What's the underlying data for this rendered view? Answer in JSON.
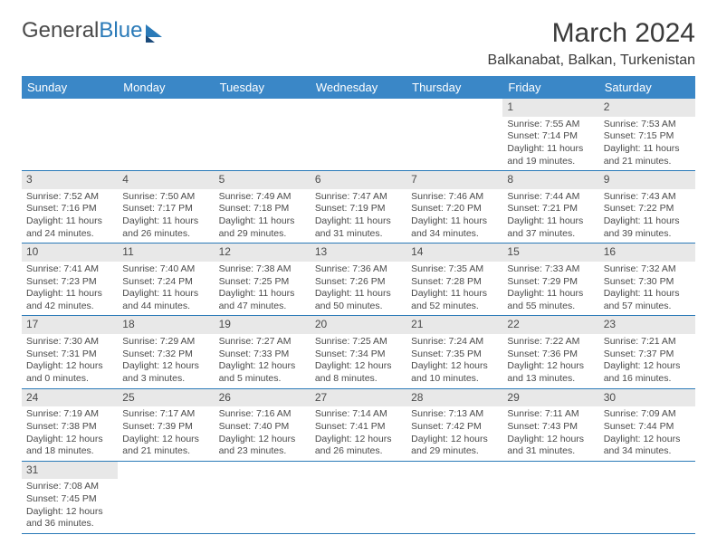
{
  "brand": {
    "part1": "General",
    "part2": "Blue"
  },
  "title": "March 2024",
  "location": "Balkanabat, Balkan, Turkenistan",
  "colors": {
    "header_bg": "#3a87c7",
    "header_text": "#ffffff",
    "daynum_bg": "#e8e8e8",
    "text": "#4a4a4a",
    "rule": "#2a7ab8",
    "page_bg": "#ffffff"
  },
  "typography": {
    "title_size": 30,
    "location_size": 16,
    "weekday_size": 13,
    "cell_size": 10.5
  },
  "weekdays": [
    "Sunday",
    "Monday",
    "Tuesday",
    "Wednesday",
    "Thursday",
    "Friday",
    "Saturday"
  ],
  "first_weekday_index": 5,
  "days": [
    {
      "n": 1,
      "sunrise": "7:55 AM",
      "sunset": "7:14 PM",
      "day_h": 11,
      "day_m": 19
    },
    {
      "n": 2,
      "sunrise": "7:53 AM",
      "sunset": "7:15 PM",
      "day_h": 11,
      "day_m": 21
    },
    {
      "n": 3,
      "sunrise": "7:52 AM",
      "sunset": "7:16 PM",
      "day_h": 11,
      "day_m": 24
    },
    {
      "n": 4,
      "sunrise": "7:50 AM",
      "sunset": "7:17 PM",
      "day_h": 11,
      "day_m": 26
    },
    {
      "n": 5,
      "sunrise": "7:49 AM",
      "sunset": "7:18 PM",
      "day_h": 11,
      "day_m": 29
    },
    {
      "n": 6,
      "sunrise": "7:47 AM",
      "sunset": "7:19 PM",
      "day_h": 11,
      "day_m": 31
    },
    {
      "n": 7,
      "sunrise": "7:46 AM",
      "sunset": "7:20 PM",
      "day_h": 11,
      "day_m": 34
    },
    {
      "n": 8,
      "sunrise": "7:44 AM",
      "sunset": "7:21 PM",
      "day_h": 11,
      "day_m": 37
    },
    {
      "n": 9,
      "sunrise": "7:43 AM",
      "sunset": "7:22 PM",
      "day_h": 11,
      "day_m": 39
    },
    {
      "n": 10,
      "sunrise": "7:41 AM",
      "sunset": "7:23 PM",
      "day_h": 11,
      "day_m": 42
    },
    {
      "n": 11,
      "sunrise": "7:40 AM",
      "sunset": "7:24 PM",
      "day_h": 11,
      "day_m": 44
    },
    {
      "n": 12,
      "sunrise": "7:38 AM",
      "sunset": "7:25 PM",
      "day_h": 11,
      "day_m": 47
    },
    {
      "n": 13,
      "sunrise": "7:36 AM",
      "sunset": "7:26 PM",
      "day_h": 11,
      "day_m": 50
    },
    {
      "n": 14,
      "sunrise": "7:35 AM",
      "sunset": "7:28 PM",
      "day_h": 11,
      "day_m": 52
    },
    {
      "n": 15,
      "sunrise": "7:33 AM",
      "sunset": "7:29 PM",
      "day_h": 11,
      "day_m": 55
    },
    {
      "n": 16,
      "sunrise": "7:32 AM",
      "sunset": "7:30 PM",
      "day_h": 11,
      "day_m": 57
    },
    {
      "n": 17,
      "sunrise": "7:30 AM",
      "sunset": "7:31 PM",
      "day_h": 12,
      "day_m": 0
    },
    {
      "n": 18,
      "sunrise": "7:29 AM",
      "sunset": "7:32 PM",
      "day_h": 12,
      "day_m": 3
    },
    {
      "n": 19,
      "sunrise": "7:27 AM",
      "sunset": "7:33 PM",
      "day_h": 12,
      "day_m": 5
    },
    {
      "n": 20,
      "sunrise": "7:25 AM",
      "sunset": "7:34 PM",
      "day_h": 12,
      "day_m": 8
    },
    {
      "n": 21,
      "sunrise": "7:24 AM",
      "sunset": "7:35 PM",
      "day_h": 12,
      "day_m": 10
    },
    {
      "n": 22,
      "sunrise": "7:22 AM",
      "sunset": "7:36 PM",
      "day_h": 12,
      "day_m": 13
    },
    {
      "n": 23,
      "sunrise": "7:21 AM",
      "sunset": "7:37 PM",
      "day_h": 12,
      "day_m": 16
    },
    {
      "n": 24,
      "sunrise": "7:19 AM",
      "sunset": "7:38 PM",
      "day_h": 12,
      "day_m": 18
    },
    {
      "n": 25,
      "sunrise": "7:17 AM",
      "sunset": "7:39 PM",
      "day_h": 12,
      "day_m": 21
    },
    {
      "n": 26,
      "sunrise": "7:16 AM",
      "sunset": "7:40 PM",
      "day_h": 12,
      "day_m": 23
    },
    {
      "n": 27,
      "sunrise": "7:14 AM",
      "sunset": "7:41 PM",
      "day_h": 12,
      "day_m": 26
    },
    {
      "n": 28,
      "sunrise": "7:13 AM",
      "sunset": "7:42 PM",
      "day_h": 12,
      "day_m": 29
    },
    {
      "n": 29,
      "sunrise": "7:11 AM",
      "sunset": "7:43 PM",
      "day_h": 12,
      "day_m": 31
    },
    {
      "n": 30,
      "sunrise": "7:09 AM",
      "sunset": "7:44 PM",
      "day_h": 12,
      "day_m": 34
    },
    {
      "n": 31,
      "sunrise": "7:08 AM",
      "sunset": "7:45 PM",
      "day_h": 12,
      "day_m": 36
    }
  ],
  "labels": {
    "sunrise": "Sunrise:",
    "sunset": "Sunset:",
    "daylight": "Daylight:",
    "hours": "hours",
    "and": "and",
    "minutes": "minutes."
  }
}
